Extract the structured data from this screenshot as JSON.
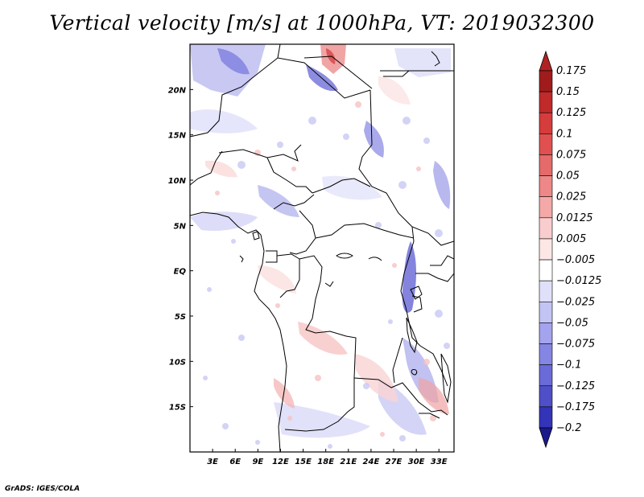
{
  "title": "Vertical velocity [m/s] at 1000hPa, VT: 2019032300",
  "credit": "GrADS: IGES/COLA",
  "map": {
    "lon_range": [
      0,
      35
    ],
    "lat_range": [
      -20,
      25
    ],
    "lon_ticks": [
      {
        "value": 3,
        "label": "3E"
      },
      {
        "value": 6,
        "label": "6E"
      },
      {
        "value": 9,
        "label": "9E"
      },
      {
        "value": 12,
        "label": "12E"
      },
      {
        "value": 15,
        "label": "15E"
      },
      {
        "value": 18,
        "label": "18E"
      },
      {
        "value": 21,
        "label": "21E"
      },
      {
        "value": 24,
        "label": "24E"
      },
      {
        "value": 27,
        "label": "27E"
      },
      {
        "value": 30,
        "label": "30E"
      },
      {
        "value": 33,
        "label": "33E"
      }
    ],
    "lat_ticks": [
      {
        "value": 20,
        "label": "20N"
      },
      {
        "value": 15,
        "label": "15N"
      },
      {
        "value": 10,
        "label": "10N"
      },
      {
        "value": 5,
        "label": "5N"
      },
      {
        "value": 0,
        "label": "EQ"
      },
      {
        "value": -5,
        "label": "5S"
      },
      {
        "value": -10,
        "label": "10S"
      },
      {
        "value": -15,
        "label": "15S"
      }
    ]
  },
  "colorbar": {
    "levels": [
      {
        "label": "0.175",
        "color": "#a01c1c"
      },
      {
        "label": "0.15",
        "color": "#c02a2a"
      },
      {
        "label": "0.125",
        "color": "#d53c3c"
      },
      {
        "label": "0.1",
        "color": "#e05050"
      },
      {
        "label": "0.075",
        "color": "#e56a6a"
      },
      {
        "label": "0.05",
        "color": "#ee8787"
      },
      {
        "label": "0.025",
        "color": "#f4a8a8"
      },
      {
        "label": "0.0125",
        "color": "#f9cdcd"
      },
      {
        "label": "0.005",
        "color": "#fde6e6"
      },
      {
        "label": "−0.005",
        "color": "#ffffff"
      },
      {
        "label": "−0.0125",
        "color": "#e0e0fb"
      },
      {
        "label": "−0.025",
        "color": "#c4c4f4"
      },
      {
        "label": "−0.05",
        "color": "#a3a3ee"
      },
      {
        "label": "−0.075",
        "color": "#8585e4"
      },
      {
        "label": "−0.1",
        "color": "#6a6ad8"
      },
      {
        "label": "−0.125",
        "color": "#4f4fc8"
      },
      {
        "label": "−0.175",
        "color": "#3434b8"
      },
      {
        "label": "−0.2",
        "color": "#22229e"
      }
    ],
    "top_triangle_color": "#b02222",
    "bottom_triangle_color": "#1a1a8c"
  }
}
